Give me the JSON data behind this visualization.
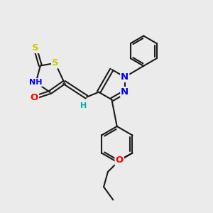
{
  "bg_color": "#ebebeb",
  "bond_color": "#1a1a1a",
  "bond_width": 1.5,
  "atom_colors": {
    "S": "#cccc00",
    "N": "#0000ee",
    "O": "#ff0000",
    "H": "#00aaaa",
    "C": "#1a1a1a"
  },
  "font_size": 8.5,
  "fig_size": [
    3.0,
    3.0
  ],
  "dpi": 100
}
